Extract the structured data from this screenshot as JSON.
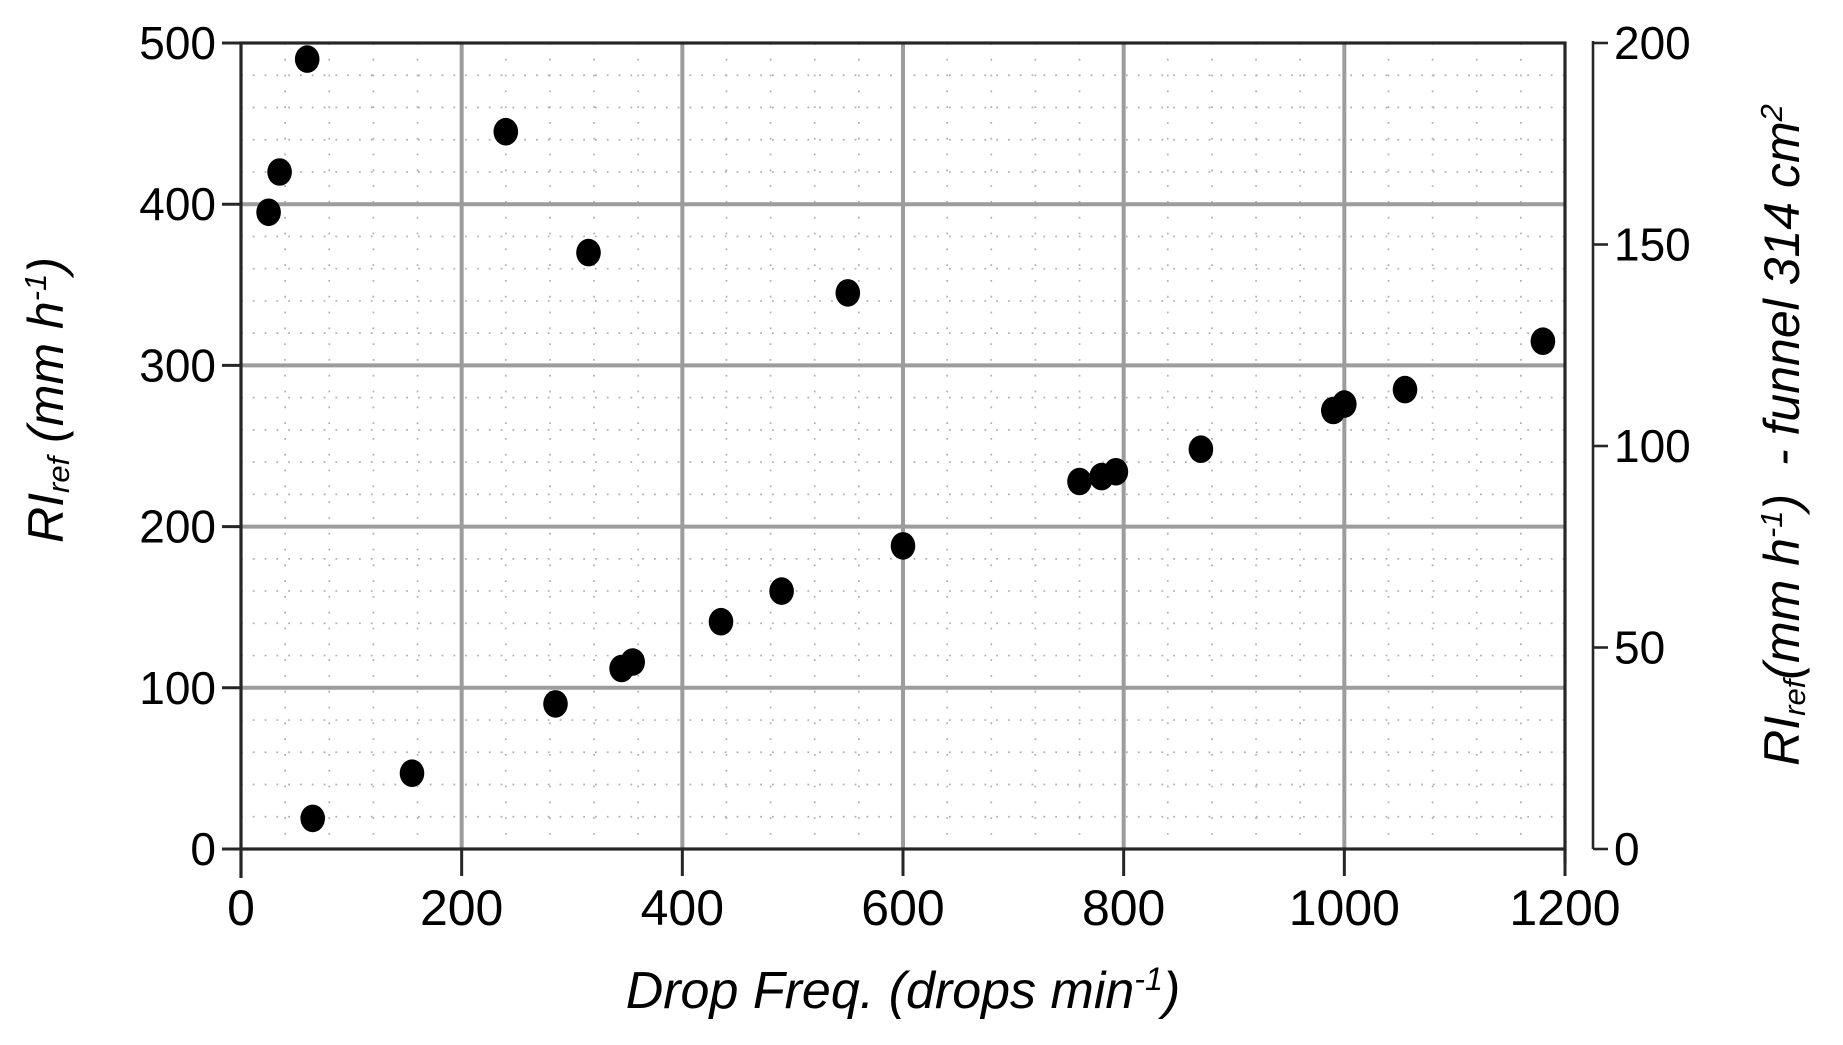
{
  "chart_data": {
    "type": "scatter",
    "title": "",
    "xlabel": "Drop Freq. (drops min^-1)",
    "ylabel_left": "RI_ref (mm h^-1)",
    "ylabel_right": "RI_ref (mm h^-1) - funnel 314 cm^2",
    "xlim": [
      0,
      1200
    ],
    "ylim_left": [
      0,
      500
    ],
    "ylim_right": [
      0,
      200
    ],
    "x_ticks": [
      0,
      200,
      400,
      600,
      800,
      1000,
      1200
    ],
    "y_ticks_left": [
      0,
      100,
      200,
      300,
      400,
      500
    ],
    "y_ticks_right": [
      0,
      50,
      100,
      150,
      200
    ],
    "grid": {
      "major_x_step": 200,
      "major_y_step": 100,
      "minor_x_step": 40,
      "minor_y_step": 20
    },
    "legend": "none",
    "series": [
      {
        "name": "RI_ref",
        "marker": "filled-black-circle",
        "points": [
          [
            25,
            395
          ],
          [
            35,
            420
          ],
          [
            60,
            490
          ],
          [
            65,
            19
          ],
          [
            155,
            47
          ],
          [
            240,
            445
          ],
          [
            285,
            90
          ],
          [
            315,
            370
          ],
          [
            345,
            112
          ],
          [
            355,
            116
          ],
          [
            435,
            141
          ],
          [
            490,
            160
          ],
          [
            550,
            345
          ],
          [
            600,
            188
          ],
          [
            760,
            228
          ],
          [
            780,
            231
          ],
          [
            793,
            234
          ],
          [
            870,
            248
          ],
          [
            990,
            272
          ],
          [
            1000,
            276
          ],
          [
            1055,
            285
          ],
          [
            1180,
            315
          ]
        ]
      }
    ]
  },
  "titles": {
    "x": {
      "pre": "Drop Freq. (drops min",
      "sup": "-1",
      "post": ")"
    },
    "left": {
      "pre": "RI",
      "sub": "ref",
      "mid": " (mm h",
      "sup": "-1",
      "post": ")"
    },
    "right": {
      "pre": "RI",
      "sub": "ref",
      "mid": "(mm h",
      "sup": "-1",
      "mid2": ")  - funnel 314 cm",
      "sup2": "2"
    }
  },
  "colors": {
    "dot": "#000000",
    "major_grid": "#9c9c9c",
    "minor_grid": "#b0b0b0",
    "axis": "#262626",
    "background": "#ffffff"
  }
}
